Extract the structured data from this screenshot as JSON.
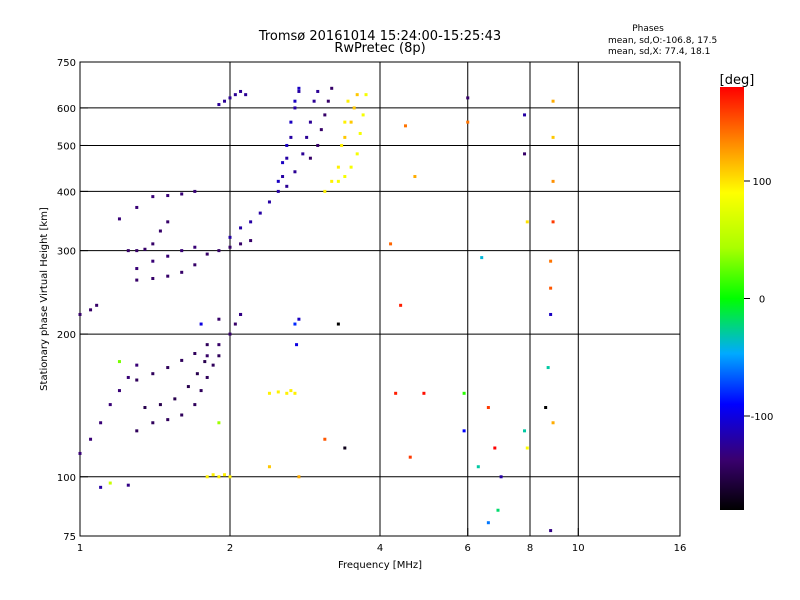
{
  "chart_data": {
    "type": "scatter",
    "title": "Tromsø 20161014 15:24:00-15:25:43",
    "subtitle": "RwPretec (8p)",
    "xlabel": "Frequency [MHz]",
    "ylabel": "Stationary phase Virtual Height [km]",
    "x_scale": "log",
    "y_scale": "log",
    "xlim": [
      1,
      16
    ],
    "ylim": [
      75,
      750
    ],
    "x_ticks": [
      1,
      2,
      4,
      6,
      8,
      10,
      16
    ],
    "x_tick_labels": [
      "1",
      "2",
      "4",
      "6",
      "8",
      "10",
      "16"
    ],
    "y_ticks": [
      75,
      100,
      200,
      300,
      400,
      500,
      600,
      750
    ],
    "y_tick_labels": [
      "75",
      "100",
      "200",
      "300",
      "400",
      "500",
      "600",
      "750"
    ],
    "vertical_grid_lines": [
      2,
      4,
      6,
      8,
      10
    ],
    "horizontal_grid_lines": [
      100,
      200,
      300,
      400,
      500,
      600
    ],
    "grid": true,
    "legend": {
      "header": "Phases",
      "lines": [
        "mean, sd,O:-106.8, 17.5",
        "mean, sd,X:  77.4, 18.1"
      ],
      "placement": "top-right"
    },
    "colorbar": {
      "label": "[deg]",
      "ticks": [
        100,
        0,
        -100
      ],
      "tick_labels": [
        "100",
        "0",
        "-100"
      ],
      "range": [
        -180,
        180
      ]
    },
    "traces": [
      {
        "phase": -135,
        "points": [
          [
            1.0,
            112
          ],
          [
            1.05,
            120
          ],
          [
            1.1,
            130
          ],
          [
            1.15,
            142
          ],
          [
            1.2,
            152
          ],
          [
            1.25,
            162
          ],
          [
            1.3,
            172
          ]
        ]
      },
      {
        "phase": -145,
        "points": [
          [
            1.3,
            125
          ],
          [
            1.4,
            130
          ],
          [
            1.5,
            132
          ],
          [
            1.6,
            135
          ],
          [
            1.7,
            142
          ],
          [
            1.75,
            152
          ],
          [
            1.8,
            162
          ],
          [
            1.85,
            172
          ],
          [
            1.9,
            180
          ]
        ]
      },
      {
        "phase": -150,
        "points": [
          [
            1.35,
            140
          ],
          [
            1.45,
            142
          ],
          [
            1.55,
            146
          ],
          [
            1.65,
            155
          ],
          [
            1.72,
            165
          ],
          [
            1.78,
            175
          ]
        ]
      },
      {
        "phase": -145,
        "points": [
          [
            1.3,
            160
          ],
          [
            1.4,
            165
          ],
          [
            1.5,
            170
          ],
          [
            1.6,
            176
          ],
          [
            1.7,
            182
          ],
          [
            1.8,
            190
          ]
        ]
      },
      {
        "phase": -140,
        "points": [
          [
            1.0,
            220
          ],
          [
            1.05,
            225
          ],
          [
            1.08,
            230
          ]
        ]
      },
      {
        "phase": -140,
        "points": [
          [
            1.25,
            300
          ],
          [
            1.3,
            300
          ],
          [
            1.35,
            302
          ],
          [
            1.4,
            310
          ],
          [
            1.45,
            330
          ],
          [
            1.5,
            345
          ]
        ]
      },
      {
        "phase": -140,
        "points": [
          [
            1.3,
            260
          ],
          [
            1.4,
            262
          ],
          [
            1.5,
            265
          ],
          [
            1.6,
            270
          ],
          [
            1.7,
            280
          ],
          [
            1.8,
            295
          ],
          [
            1.9,
            300
          ],
          [
            2.0,
            305
          ],
          [
            2.1,
            310
          ],
          [
            2.2,
            315
          ]
        ]
      },
      {
        "phase": -135,
        "points": [
          [
            1.3,
            275
          ],
          [
            1.4,
            285
          ],
          [
            1.5,
            292
          ],
          [
            1.6,
            300
          ],
          [
            1.7,
            305
          ]
        ]
      },
      {
        "phase": -135,
        "points": [
          [
            1.2,
            350
          ],
          [
            1.3,
            370
          ],
          [
            1.4,
            390
          ],
          [
            1.5,
            392
          ],
          [
            1.6,
            395
          ],
          [
            1.7,
            400
          ]
        ]
      },
      {
        "phase": -120,
        "points": [
          [
            2.0,
            320
          ],
          [
            2.1,
            335
          ],
          [
            2.2,
            345
          ],
          [
            2.3,
            360
          ],
          [
            2.4,
            380
          ],
          [
            2.5,
            400
          ],
          [
            2.55,
            430
          ],
          [
            2.6,
            470
          ],
          [
            2.65,
            520
          ],
          [
            2.7,
            600
          ],
          [
            2.75,
            650
          ]
        ]
      },
      {
        "phase": -110,
        "points": [
          [
            2.5,
            420
          ],
          [
            2.55,
            460
          ],
          [
            2.6,
            500
          ],
          [
            2.65,
            560
          ],
          [
            2.7,
            620
          ],
          [
            2.75,
            660
          ]
        ]
      },
      {
        "phase": -125,
        "points": [
          [
            1.9,
            610
          ],
          [
            1.95,
            620
          ],
          [
            2.0,
            630
          ],
          [
            2.05,
            640
          ],
          [
            2.1,
            650
          ],
          [
            2.15,
            640
          ]
        ]
      },
      {
        "phase": -125,
        "points": [
          [
            2.6,
            410
          ],
          [
            2.7,
            440
          ],
          [
            2.8,
            480
          ],
          [
            2.85,
            520
          ],
          [
            2.9,
            560
          ],
          [
            2.95,
            620
          ],
          [
            3.0,
            650
          ]
        ]
      },
      {
        "phase": -140,
        "points": [
          [
            2.9,
            470
          ],
          [
            3.0,
            500
          ],
          [
            3.05,
            540
          ],
          [
            3.1,
            580
          ],
          [
            3.15,
            620
          ],
          [
            3.2,
            660
          ]
        ]
      },
      {
        "phase": 95,
        "points": [
          [
            3.1,
            400
          ],
          [
            3.2,
            420
          ],
          [
            3.3,
            450
          ],
          [
            3.35,
            500
          ],
          [
            3.4,
            560
          ],
          [
            3.45,
            620
          ]
        ]
      },
      {
        "phase": 85,
        "points": [
          [
            3.3,
            420
          ],
          [
            3.4,
            430
          ],
          [
            3.5,
            450
          ],
          [
            3.6,
            480
          ],
          [
            3.65,
            530
          ],
          [
            3.7,
            580
          ],
          [
            3.75,
            640
          ]
        ]
      },
      {
        "phase": 110,
        "points": [
          [
            3.4,
            520
          ],
          [
            3.5,
            560
          ],
          [
            3.55,
            600
          ],
          [
            3.6,
            640
          ]
        ]
      },
      {
        "phase": -140,
        "points": [
          [
            1.8,
            180
          ],
          [
            1.9,
            190
          ],
          [
            2.0,
            200
          ],
          [
            2.05,
            210
          ],
          [
            2.1,
            220
          ]
        ]
      },
      {
        "phase": 95,
        "points": [
          [
            1.8,
            100
          ],
          [
            1.85,
            101
          ],
          [
            1.9,
            100
          ],
          [
            1.95,
            101
          ],
          [
            2.0,
            100
          ]
        ]
      },
      {
        "phase": 95,
        "points": [
          [
            2.4,
            150
          ],
          [
            2.5,
            151
          ],
          [
            2.6,
            150
          ],
          [
            2.65,
            152
          ],
          [
            2.7,
            150
          ]
        ]
      }
    ],
    "points": [
      {
        "x": 1.1,
        "y": 95,
        "phase": -120
      },
      {
        "x": 1.15,
        "y": 97,
        "phase": 60
      },
      {
        "x": 1.25,
        "y": 96,
        "phase": -130
      },
      {
        "x": 1.2,
        "y": 175,
        "phase": 30
      },
      {
        "x": 1.9,
        "y": 130,
        "phase": 40
      },
      {
        "x": 2.1,
        "y": 220,
        "phase": -130
      },
      {
        "x": 2.75,
        "y": 100,
        "phase": 120
      },
      {
        "x": 2.4,
        "y": 105,
        "phase": 110
      },
      {
        "x": 2.7,
        "y": 210,
        "phase": -80
      },
      {
        "x": 3.1,
        "y": 120,
        "phase": 150
      },
      {
        "x": 3.3,
        "y": 210,
        "phase": -180
      },
      {
        "x": 3.4,
        "y": 115,
        "phase": -170
      },
      {
        "x": 4.3,
        "y": 150,
        "phase": 170
      },
      {
        "x": 4.6,
        "y": 110,
        "phase": 160
      },
      {
        "x": 4.9,
        "y": 150,
        "phase": 175
      },
      {
        "x": 4.4,
        "y": 230,
        "phase": 170
      },
      {
        "x": 4.2,
        "y": 310,
        "phase": 145
      },
      {
        "x": 4.5,
        "y": 550,
        "phase": 140
      },
      {
        "x": 4.7,
        "y": 430,
        "phase": 120
      },
      {
        "x": 5.9,
        "y": 150,
        "phase": 10
      },
      {
        "x": 5.9,
        "y": 125,
        "phase": -90
      },
      {
        "x": 6.0,
        "y": 560,
        "phase": 140
      },
      {
        "x": 6.0,
        "y": 630,
        "phase": -140
      },
      {
        "x": 6.3,
        "y": 105,
        "phase": -30
      },
      {
        "x": 6.4,
        "y": 290,
        "phase": -40
      },
      {
        "x": 6.6,
        "y": 140,
        "phase": 160
      },
      {
        "x": 6.8,
        "y": 115,
        "phase": 180
      },
      {
        "x": 6.9,
        "y": 85,
        "phase": -20
      },
      {
        "x": 7.0,
        "y": 100,
        "phase": -120
      },
      {
        "x": 6.6,
        "y": 80,
        "phase": -60
      },
      {
        "x": 7.8,
        "y": 580,
        "phase": -120
      },
      {
        "x": 7.8,
        "y": 480,
        "phase": -140
      },
      {
        "x": 7.8,
        "y": 125,
        "phase": -30
      },
      {
        "x": 7.9,
        "y": 115,
        "phase": 90
      },
      {
        "x": 7.9,
        "y": 345,
        "phase": 100
      },
      {
        "x": 8.6,
        "y": 140,
        "phase": -180
      },
      {
        "x": 8.7,
        "y": 170,
        "phase": -30
      },
      {
        "x": 8.8,
        "y": 220,
        "phase": -110
      },
      {
        "x": 8.8,
        "y": 250,
        "phase": 150
      },
      {
        "x": 8.9,
        "y": 345,
        "phase": 160
      },
      {
        "x": 8.8,
        "y": 285,
        "phase": 140
      },
      {
        "x": 8.9,
        "y": 420,
        "phase": 130
      },
      {
        "x": 8.9,
        "y": 520,
        "phase": 110
      },
      {
        "x": 8.9,
        "y": 620,
        "phase": 120
      },
      {
        "x": 8.8,
        "y": 77,
        "phase": -130
      },
      {
        "x": 8.9,
        "y": 130,
        "phase": 120
      },
      {
        "x": 2.75,
        "y": 215,
        "phase": -110
      },
      {
        "x": 2.72,
        "y": 190,
        "phase": -100
      },
      {
        "x": 1.75,
        "y": 210,
        "phase": -100
      },
      {
        "x": 1.9,
        "y": 215,
        "phase": -140
      }
    ]
  }
}
